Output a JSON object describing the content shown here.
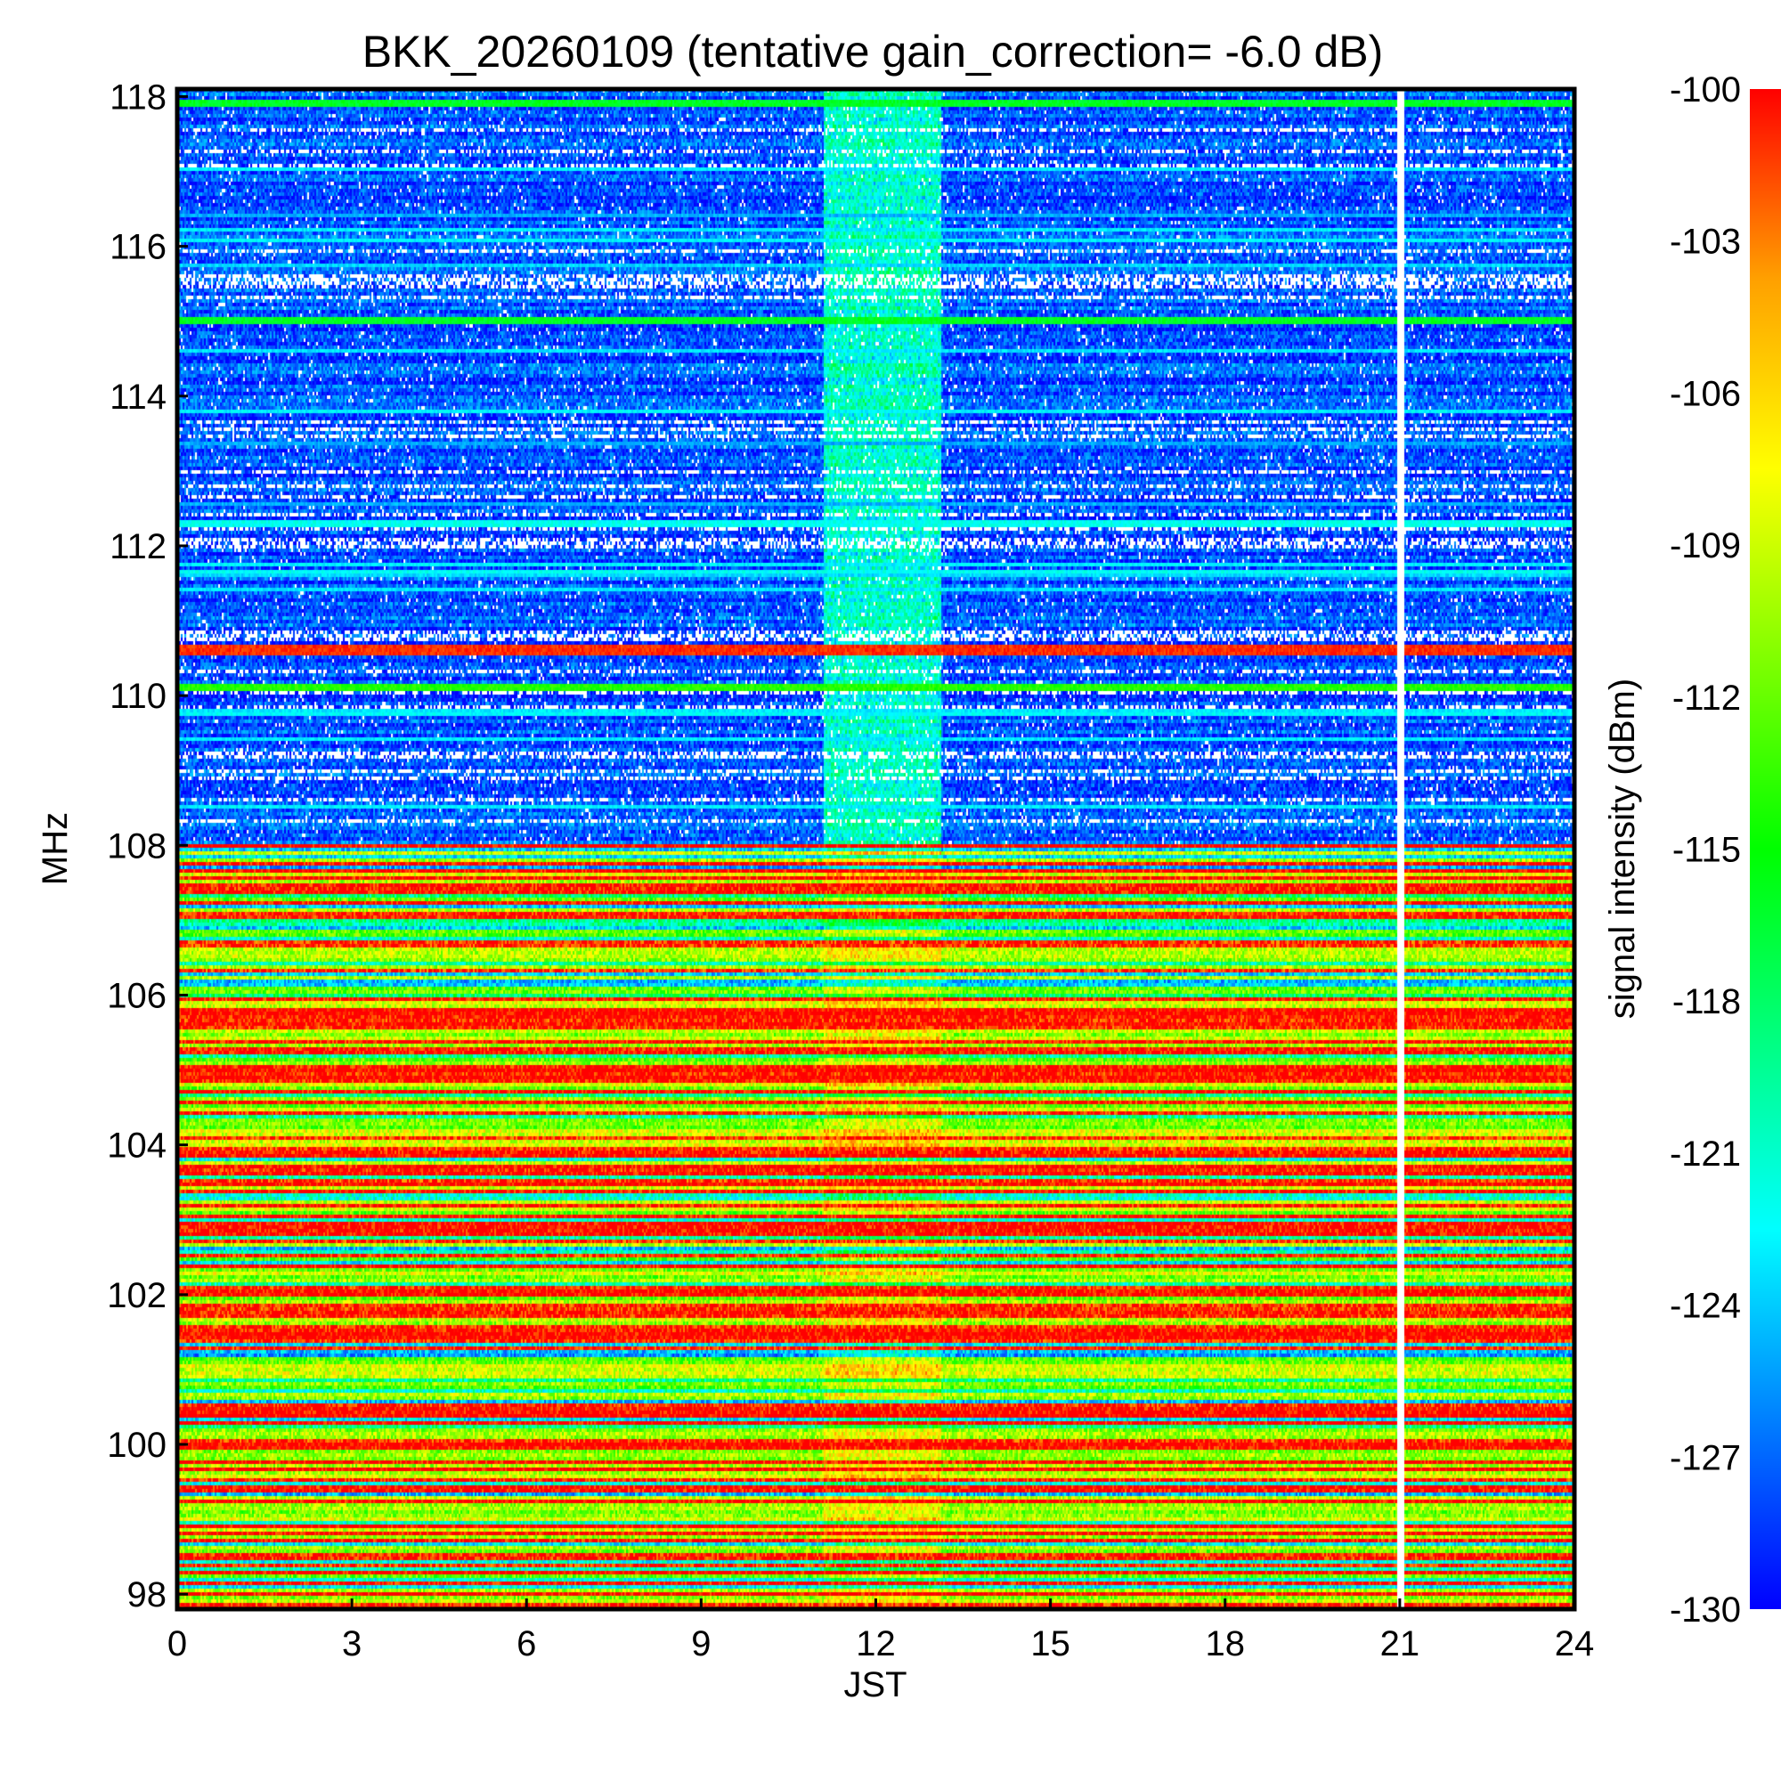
{
  "chart_data": {
    "type": "heatmap",
    "title": "BKK_20260109 (tentative gain_correction= -6.0 dB)",
    "xlabel": "JST",
    "ylabel": "MHz",
    "colorbar_label": "signal intensity (dBm)",
    "xlim": [
      0,
      24
    ],
    "ylim": [
      97.8,
      118.1
    ],
    "xticks": [
      0,
      3,
      6,
      9,
      12,
      15,
      18,
      21,
      24
    ],
    "xtick_labels": [
      "0",
      "3",
      "6",
      "9",
      "12",
      "15",
      "18",
      "21",
      "24"
    ],
    "yticks": [
      98,
      100,
      102,
      104,
      106,
      108,
      110,
      112,
      114,
      116,
      118
    ],
    "ytick_labels": [
      "98",
      "100",
      "102",
      "104",
      "106",
      "108",
      "110",
      "112",
      "114",
      "116",
      "118"
    ],
    "colorbar_range": [
      -130,
      -100
    ],
    "colorbar_ticks": [
      -100,
      -103,
      -106,
      -109,
      -112,
      -115,
      -118,
      -121,
      -124,
      -127,
      -130
    ],
    "colorbar_tick_labels": [
      "-100",
      "-103",
      "-106",
      "-109",
      "-112",
      "-115",
      "-118",
      "-121",
      "-124",
      "-127",
      "-130"
    ],
    "colormap": [
      "#0000ff",
      "#0080ff",
      "#00ffff",
      "#00ff80",
      "#00ff00",
      "#80ff00",
      "#ffff00",
      "#ffa000",
      "#ff0000"
    ],
    "noise_floor_dbm": -128,
    "data_gap_jst": 21.0,
    "enhanced_noise_period_jst": [
      11.1,
      13.1
    ],
    "strong_channels_mhz": [
      {
        "freq": 110.6,
        "dbm": -101
      },
      {
        "freq": 110.1,
        "dbm": -114
      },
      {
        "freq": 115.0,
        "dbm": -116
      },
      {
        "freq": 117.9,
        "dbm": -116
      },
      {
        "freq": 112.3,
        "dbm": -122
      }
    ],
    "fm_band_mhz": [
      97.8,
      108.0
    ],
    "fm_band_typical_dbm": -104
  }
}
